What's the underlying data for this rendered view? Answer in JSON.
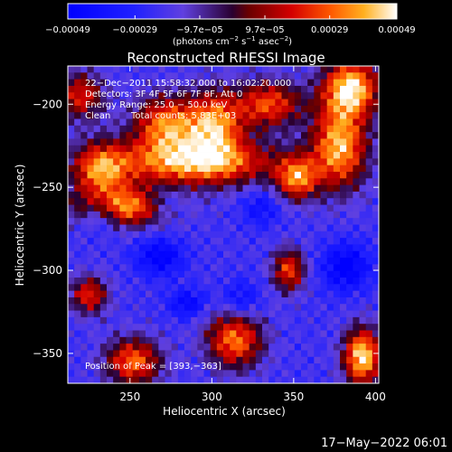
{
  "chart_data": {
    "type": "heatmap",
    "title": "Reconstructed RHESSI Image",
    "xlabel": "Heliocentric X (arcsec)",
    "ylabel": "Heliocentric Y (arcsec)",
    "xlim": [
      212,
      402
    ],
    "ylim": [
      -368,
      -177
    ],
    "x_ticks": [
      250,
      300,
      350,
      400
    ],
    "y_ticks": [
      -350,
      -300,
      -250,
      -200
    ],
    "x_tick_labels": [
      "250",
      "300",
      "350",
      "400"
    ],
    "y_tick_labels": [
      "−350",
      "−300",
      "−250",
      "−200"
    ],
    "colorbar": {
      "ticks": [
        -0.00049,
        -0.00029,
        -9.7e-05,
        9.7e-05,
        0.00029,
        0.00049
      ],
      "tick_labels": [
        "−0.00049",
        "−0.00029",
        "−9.7e−05",
        "9.7e−05",
        "0.00029",
        "0.00049"
      ],
      "range": [
        -0.00049,
        0.00049
      ],
      "unit_main": "(photons cm",
      "unit_sup1": "−2",
      "unit_mid1": " s",
      "unit_sup2": "−1",
      "unit_mid2": " asec",
      "unit_sup3": "−2",
      "unit_end": ")"
    },
    "annotations": {
      "time_range": "22−Dec−2011 15:58:32.000 to 16:02:20.000",
      "detectors": "Detectors: 3F 4F 5F 6F 7F 8F, Att 0",
      "energy_range": "Energy Range: 25.0 − 50.0 keV",
      "algorithm": "Clean",
      "total_counts": "Total counts: 5.83E+03",
      "peak_position": "Position of Peak = [393,−363]"
    },
    "peak": {
      "x": 393,
      "y": -363
    },
    "hot_regions": [
      {
        "x": 290,
        "y": -235,
        "sx": 35,
        "sy": 10,
        "amp": 0.0004
      },
      {
        "x": 272,
        "y": -212,
        "sx": 14,
        "sy": 12,
        "amp": 0.00032
      },
      {
        "x": 302,
        "y": -212,
        "sx": 12,
        "sy": 14,
        "amp": 0.00034
      },
      {
        "x": 245,
        "y": -262,
        "sx": 20,
        "sy": 8,
        "amp": 0.00036
      },
      {
        "x": 232,
        "y": -240,
        "sx": 12,
        "sy": 12,
        "amp": 0.00028
      },
      {
        "x": 385,
        "y": -190,
        "sx": 12,
        "sy": 12,
        "amp": 0.00045
      },
      {
        "x": 378,
        "y": -225,
        "sx": 12,
        "sy": 18,
        "amp": 0.0004
      },
      {
        "x": 352,
        "y": -245,
        "sx": 9,
        "sy": 9,
        "amp": 0.0003
      },
      {
        "x": 335,
        "y": -200,
        "sx": 14,
        "sy": 10,
        "amp": 0.00026
      },
      {
        "x": 392,
        "y": -352,
        "sx": 8,
        "sy": 12,
        "amp": 0.00048
      },
      {
        "x": 314,
        "y": -342,
        "sx": 12,
        "sy": 12,
        "amp": 0.00032
      },
      {
        "x": 252,
        "y": -355,
        "sx": 12,
        "sy": 10,
        "amp": 0.0003
      },
      {
        "x": 347,
        "y": -300,
        "sx": 7,
        "sy": 9,
        "amp": 0.00024
      },
      {
        "x": 225,
        "y": -315,
        "sx": 8,
        "sy": 8,
        "amp": 0.00022
      },
      {
        "x": 220,
        "y": -195,
        "sx": 10,
        "sy": 10,
        "amp": 0.0002
      }
    ],
    "cold_regions": [
      {
        "x": 232,
        "y": -265,
        "sx": 8,
        "sy": 8,
        "amp": -0.0003
      },
      {
        "x": 268,
        "y": -292,
        "sx": 10,
        "sy": 8,
        "amp": -0.00028
      },
      {
        "x": 285,
        "y": -320,
        "sx": 8,
        "sy": 6,
        "amp": -0.00024
      },
      {
        "x": 382,
        "y": -298,
        "sx": 10,
        "sy": 10,
        "amp": -0.0003
      },
      {
        "x": 318,
        "y": -318,
        "sx": 8,
        "sy": 8,
        "amp": -0.0002
      },
      {
        "x": 272,
        "y": -260,
        "sx": 8,
        "sy": 6,
        "amp": -0.00018
      },
      {
        "x": 330,
        "y": -262,
        "sx": 8,
        "sy": 8,
        "amp": -0.00018
      }
    ]
  },
  "footer": {
    "timestamp": "17−May−2022 06:01"
  },
  "colors": {
    "background": "#000000",
    "text": "#ffffff"
  }
}
